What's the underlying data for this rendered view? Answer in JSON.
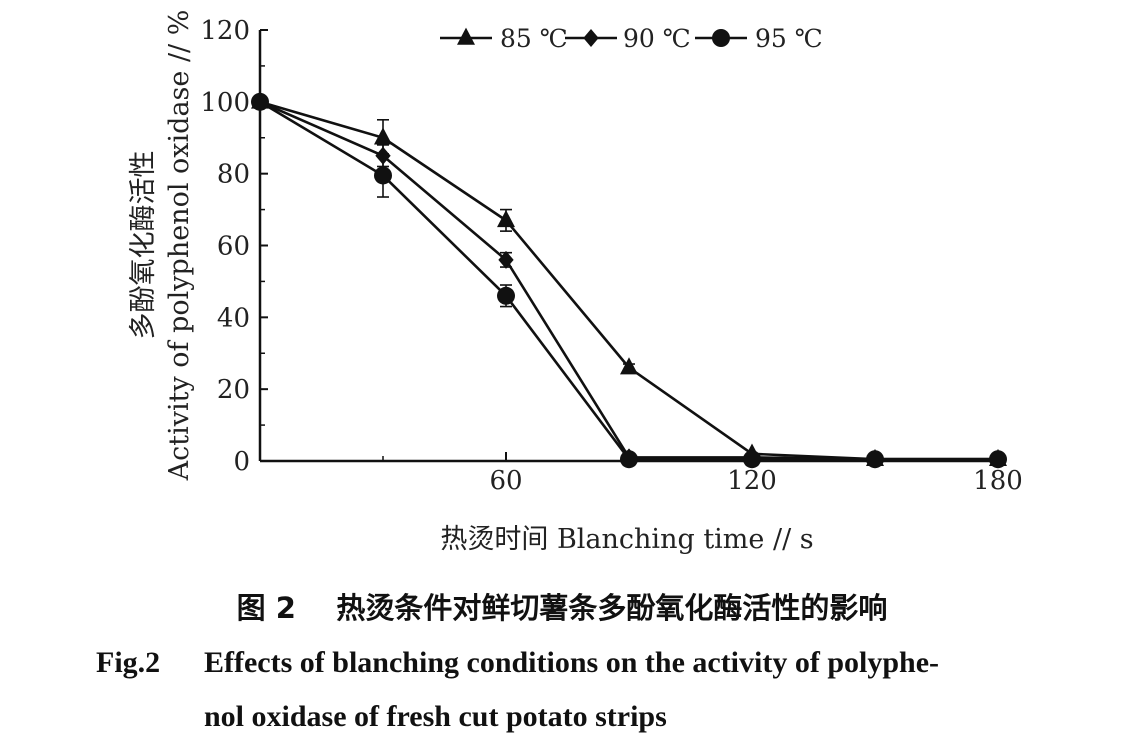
{
  "chart_data": {
    "type": "line",
    "xlabel": "热烫时间 Blanching time // s",
    "ylabel_zh": "多酚氧化酶活性",
    "ylabel_en": "Activity of polyphenol oxidase // %",
    "xlim": [
      0,
      180
    ],
    "ylim": [
      0,
      120
    ],
    "x_ticks": [
      "60",
      "120",
      "180"
    ],
    "y_ticks": [
      "0",
      "20",
      "40",
      "60",
      "80",
      "100",
      "120"
    ],
    "grid": false,
    "legend_position": "top",
    "series": [
      {
        "name": "85 ℃",
        "marker": "triangle",
        "x": [
          0,
          30,
          60,
          90,
          120,
          150,
          180
        ],
        "y": [
          100,
          90,
          67,
          26,
          2,
          0.5,
          0.5
        ],
        "err": [
          0,
          5,
          3,
          1,
          0.5,
          0.3,
          0.3
        ]
      },
      {
        "name": "90 ℃",
        "marker": "diamond",
        "x": [
          0,
          30,
          60,
          90,
          120,
          150,
          180
        ],
        "y": [
          100,
          85,
          56,
          1,
          1,
          0.5,
          0.5
        ],
        "err": [
          0,
          3,
          2,
          0.5,
          0.3,
          0.3,
          0.3
        ]
      },
      {
        "name": "95 ℃",
        "marker": "circle",
        "x": [
          0,
          30,
          60,
          90,
          120,
          150,
          180
        ],
        "y": [
          100,
          79.5,
          46,
          0.5,
          0.5,
          0.5,
          0.5
        ],
        "err": [
          0,
          6,
          3,
          0.5,
          0.3,
          0.3,
          0.3
        ]
      }
    ]
  },
  "caption": {
    "zh_number": "图 2",
    "zh_text": "热烫条件对鲜切薯条多酚氧化酶活性的影响",
    "en_number": "Fig.2",
    "en_line1": "Effects of blanching conditions on the activity of polyphe-",
    "en_line2": "nol oxidase of fresh cut potato strips"
  }
}
